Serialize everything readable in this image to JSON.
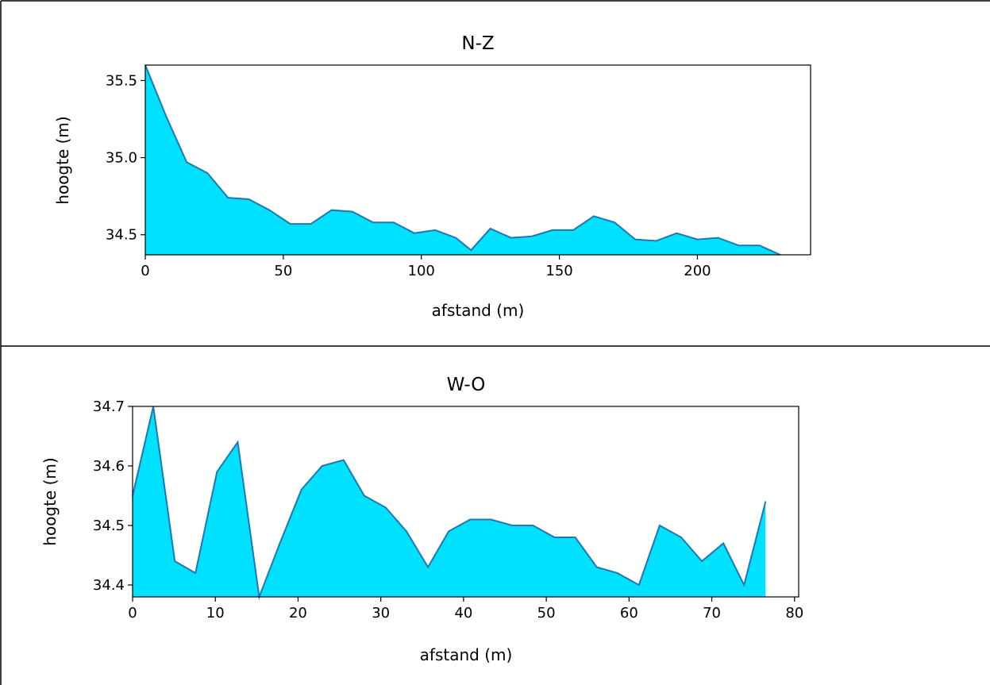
{
  "chart_data": [
    {
      "type": "area",
      "title": "N-Z",
      "xlabel": "afstand (m)",
      "ylabel": "hoogte (m)",
      "xlim": [
        0,
        241
      ],
      "ylim": [
        34.37,
        35.6
      ],
      "xticks": [
        0,
        50,
        100,
        150,
        200
      ],
      "yticks": [
        34.5,
        35.0,
        35.5
      ],
      "xtick_labels": [
        "0",
        "50",
        "100",
        "150",
        "200"
      ],
      "ytick_labels": [
        "34.5",
        "35.0",
        "35.5"
      ],
      "fill_color": "#00e1ff",
      "line_color": "#1f77b4",
      "grid": false,
      "x": [
        0,
        7.5,
        15,
        22.5,
        30,
        37.5,
        45,
        52.5,
        60,
        67.5,
        75,
        82.5,
        90,
        97.5,
        105,
        112.5,
        118,
        125,
        132.5,
        140,
        147.5,
        155,
        162.5,
        170,
        177.5,
        185,
        192.5,
        200,
        207.5,
        215,
        222.5,
        230
      ],
      "y": [
        35.6,
        35.27,
        34.97,
        34.9,
        34.74,
        34.73,
        34.66,
        34.57,
        34.57,
        34.66,
        34.65,
        34.58,
        34.58,
        34.51,
        34.53,
        34.48,
        34.4,
        34.54,
        34.48,
        34.49,
        34.53,
        34.53,
        34.62,
        34.58,
        34.47,
        34.46,
        34.51,
        34.47,
        34.48,
        34.43,
        34.43,
        34.37
      ]
    },
    {
      "type": "area",
      "title": "W-O",
      "xlabel": "afstand (m)",
      "ylabel": "hoogte (m)",
      "xlim": [
        0,
        80.5
      ],
      "ylim": [
        34.38,
        34.7
      ],
      "xticks": [
        0,
        10,
        20,
        30,
        40,
        50,
        60,
        70,
        80
      ],
      "yticks": [
        34.4,
        34.5,
        34.6,
        34.7
      ],
      "xtick_labels": [
        "0",
        "10",
        "20",
        "30",
        "40",
        "50",
        "60",
        "70",
        "80"
      ],
      "ytick_labels": [
        "34.4",
        "34.5",
        "34.6",
        "34.7"
      ],
      "fill_color": "#00e1ff",
      "line_color": "#1f77b4",
      "grid": false,
      "x": [
        0,
        2.5,
        5.1,
        7.6,
        10.2,
        12.7,
        15.3,
        17.8,
        20.4,
        22.9,
        25.5,
        28.0,
        30.6,
        33.1,
        35.7,
        38.2,
        40.8,
        43.3,
        45.9,
        48.4,
        51.0,
        53.5,
        56.1,
        58.6,
        61.2,
        63.7,
        66.3,
        68.8,
        71.4,
        73.9,
        76.5
      ],
      "y": [
        34.55,
        34.7,
        34.44,
        34.42,
        34.59,
        34.64,
        34.38,
        34.47,
        34.56,
        34.6,
        34.61,
        34.55,
        34.53,
        34.49,
        34.43,
        34.49,
        34.51,
        34.51,
        34.5,
        34.5,
        34.48,
        34.48,
        34.43,
        34.42,
        34.4,
        34.5,
        34.48,
        34.44,
        34.47,
        34.4,
        34.54
      ]
    }
  ]
}
